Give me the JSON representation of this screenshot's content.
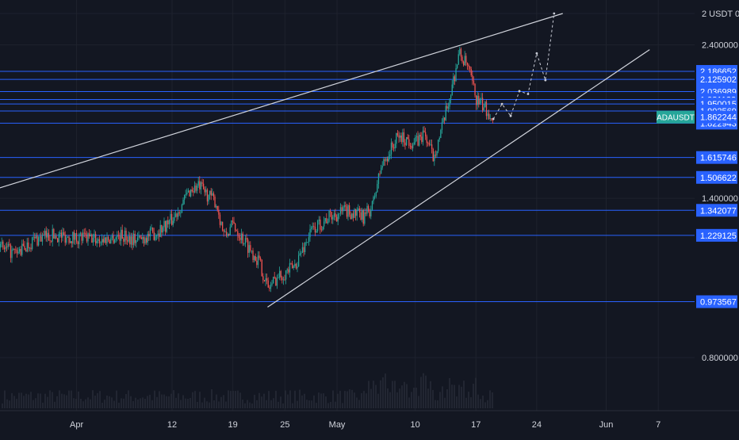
{
  "symbol_label": "ADAUSDT",
  "colors": {
    "background": "#131722",
    "grid": "#1e222d",
    "hline": "#2962ff",
    "trendline": "#d1d4dc",
    "candle_up": "#26a69a",
    "candle_down": "#ef5350",
    "label_blue": "#2962ff",
    "label_symbol": "#26a69a",
    "axis_text": "#d1d4dc"
  },
  "chart_data": {
    "type": "candlestick",
    "y_scale": "log",
    "ylim": [
      0.74,
      2.68
    ],
    "x_start": "2021-03-23",
    "x_end": "2021-06-08",
    "price_ticks": [
      {
        "value": 2.68,
        "label": "2 USDT 0"
      },
      {
        "value": 2.4,
        "label": "2.400000"
      },
      {
        "value": 1.4,
        "label": "1.400000"
      },
      {
        "value": 0.8,
        "label": "0.800000"
      }
    ],
    "time_ticks": [
      {
        "date": "2021-04-01",
        "label": "Apr"
      },
      {
        "date": "2021-04-12",
        "label": "12"
      },
      {
        "date": "2021-04-19",
        "label": "19"
      },
      {
        "date": "2021-04-25",
        "label": "25"
      },
      {
        "date": "2021-05-01",
        "label": "May"
      },
      {
        "date": "2021-05-10",
        "label": "10"
      },
      {
        "date": "2021-05-17",
        "label": "17"
      },
      {
        "date": "2021-05-24",
        "label": "24"
      },
      {
        "date": "2021-06-01",
        "label": "Jun"
      },
      {
        "date": "2021-06-07",
        "label": "7"
      }
    ],
    "horizontal_levels": [
      {
        "value": 2.186652,
        "label": "2.186652"
      },
      {
        "value": 2.125902,
        "label": "2.125902"
      },
      {
        "value": 2.036989,
        "label": "2.036989"
      },
      {
        "value": 1.981122,
        "label": "1.981122"
      },
      {
        "value": 1.950015,
        "label": "1.950015"
      },
      {
        "value": 1.902569,
        "label": "1.902569"
      },
      {
        "value": 1.822943,
        "label": "1.822943"
      },
      {
        "value": 1.615746,
        "label": "1.615746"
      },
      {
        "value": 1.506622,
        "label": "1.506622"
      },
      {
        "value": 1.342077,
        "label": "1.342077"
      },
      {
        "value": 1.229125,
        "label": "1.229125"
      },
      {
        "value": 0.973567,
        "label": "0.973567"
      }
    ],
    "last_price": {
      "value": 1.862244,
      "label": "1.862244"
    },
    "trendlines": [
      {
        "name": "upper-trendline",
        "from": {
          "date": "2021-03-23",
          "price": 1.45
        },
        "to": {
          "date": "2021-05-27",
          "price": 2.68
        }
      },
      {
        "name": "lower-trendline",
        "from": {
          "date": "2021-04-23",
          "price": 0.955
        },
        "to": {
          "date": "2021-06-06",
          "price": 2.36
        }
      }
    ],
    "projection_path": [
      {
        "date": "2021-05-19",
        "price": 1.85
      },
      {
        "date": "2021-05-20",
        "price": 1.95
      },
      {
        "date": "2021-05-21",
        "price": 1.87
      },
      {
        "date": "2021-05-22",
        "price": 2.04
      },
      {
        "date": "2021-05-23",
        "price": 2.02
      },
      {
        "date": "2021-05-24",
        "price": 2.33
      },
      {
        "date": "2021-05-25",
        "price": 2.12
      },
      {
        "date": "2021-05-26",
        "price": 2.68
      }
    ],
    "price_path": [
      {
        "date": "2021-03-23",
        "price": 1.18
      },
      {
        "date": "2021-03-25",
        "price": 1.15
      },
      {
        "date": "2021-03-27",
        "price": 1.21
      },
      {
        "date": "2021-03-29",
        "price": 1.23
      },
      {
        "date": "2021-04-01",
        "price": 1.22
      },
      {
        "date": "2021-04-04",
        "price": 1.21
      },
      {
        "date": "2021-04-06",
        "price": 1.23
      },
      {
        "date": "2021-04-08",
        "price": 1.21
      },
      {
        "date": "2021-04-10",
        "price": 1.24
      },
      {
        "date": "2021-04-12",
        "price": 1.3
      },
      {
        "date": "2021-04-14",
        "price": 1.44
      },
      {
        "date": "2021-04-15",
        "price": 1.46
      },
      {
        "date": "2021-04-17",
        "price": 1.38
      },
      {
        "date": "2021-04-18",
        "price": 1.22
      },
      {
        "date": "2021-04-19",
        "price": 1.28
      },
      {
        "date": "2021-04-20",
        "price": 1.22
      },
      {
        "date": "2021-04-22",
        "price": 1.12
      },
      {
        "date": "2021-04-23",
        "price": 1.02
      },
      {
        "date": "2021-04-24",
        "price": 1.06
      },
      {
        "date": "2021-04-26",
        "price": 1.1
      },
      {
        "date": "2021-04-28",
        "price": 1.25
      },
      {
        "date": "2021-04-30",
        "price": 1.31
      },
      {
        "date": "2021-05-02",
        "price": 1.34
      },
      {
        "date": "2021-05-04",
        "price": 1.31
      },
      {
        "date": "2021-05-05",
        "price": 1.36
      },
      {
        "date": "2021-05-06",
        "price": 1.56
      },
      {
        "date": "2021-05-07",
        "price": 1.65
      },
      {
        "date": "2021-05-08",
        "price": 1.74
      },
      {
        "date": "2021-05-10",
        "price": 1.7
      },
      {
        "date": "2021-05-11",
        "price": 1.76
      },
      {
        "date": "2021-05-12",
        "price": 1.62
      },
      {
        "date": "2021-05-13",
        "price": 1.78
      },
      {
        "date": "2021-05-14",
        "price": 2.02
      },
      {
        "date": "2021-05-15",
        "price": 2.33
      },
      {
        "date": "2021-05-16",
        "price": 2.22
      },
      {
        "date": "2021-05-17",
        "price": 1.98
      },
      {
        "date": "2021-05-18",
        "price": 1.92
      },
      {
        "date": "2021-05-19",
        "price": 1.86
      }
    ]
  }
}
